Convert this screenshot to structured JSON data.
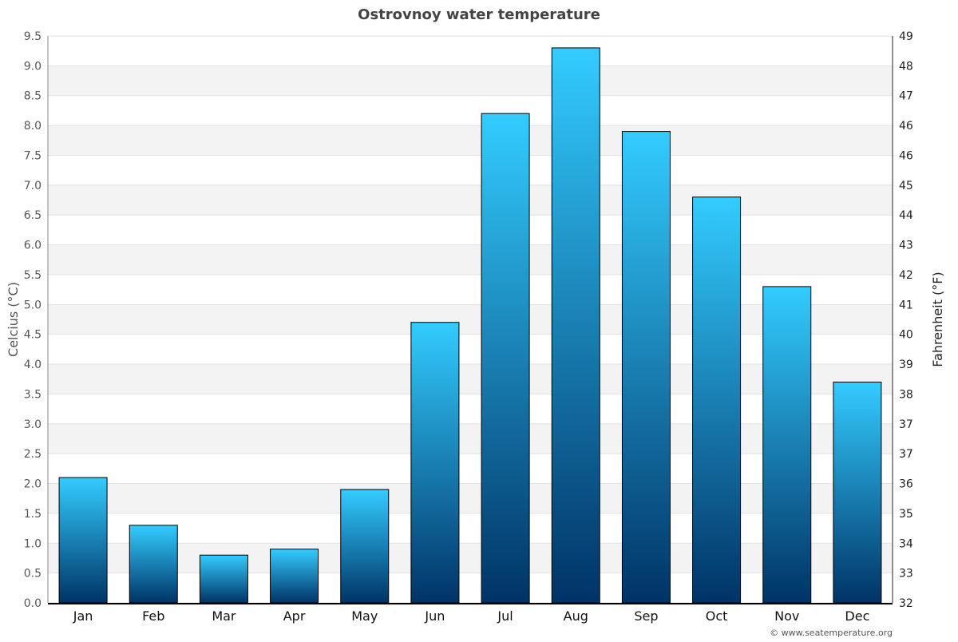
{
  "chart_data": {
    "type": "bar",
    "title": "Ostrovnoy water temperature",
    "ylabel": "Celcius (°C)",
    "y2label": "Fahrenheit (°F)",
    "categories": [
      "Jan",
      "Feb",
      "Mar",
      "Apr",
      "May",
      "Jun",
      "Jul",
      "Aug",
      "Sep",
      "Oct",
      "Nov",
      "Dec"
    ],
    "values": [
      2.1,
      1.3,
      0.8,
      0.9,
      1.9,
      4.7,
      8.2,
      9.3,
      7.9,
      6.8,
      5.3,
      3.7
    ],
    "ylim": [
      0,
      9.5
    ],
    "yticks": [
      "0.0",
      "0.5",
      "1.0",
      "1.5",
      "2.0",
      "2.5",
      "3.0",
      "3.5",
      "4.0",
      "4.5",
      "5.0",
      "5.5",
      "6.0",
      "6.5",
      "7.0",
      "7.5",
      "8.0",
      "8.5",
      "9.0",
      "9.5"
    ],
    "y2ticks": [
      "32",
      "33",
      "34",
      "35",
      "36",
      "37",
      "37",
      "38",
      "39",
      "40",
      "41",
      "42",
      "43",
      "44",
      "45",
      "46",
      "46",
      "47",
      "48",
      "49"
    ],
    "grid": true,
    "colors": {
      "bar_top": "#33ccff",
      "bar_bottom": "#003366",
      "band": "#f3f3f3"
    }
  },
  "credit": "© www.seatemperature.org"
}
